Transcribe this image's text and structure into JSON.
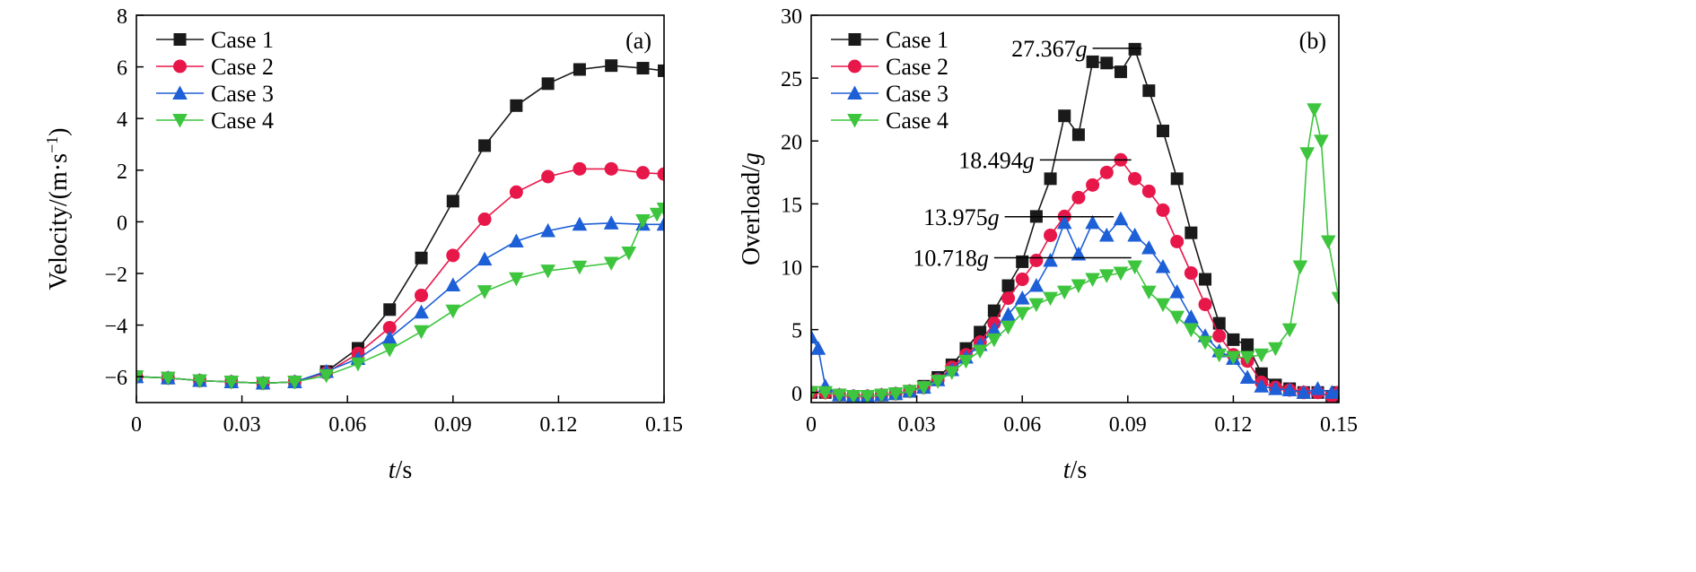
{
  "colors": {
    "case1": "#1a1a1a",
    "case2": "#e8174a",
    "case3": "#1d5fd6",
    "case4": "#3ec53e"
  },
  "chart_data": [
    {
      "type": "line",
      "panel_label": "(a)",
      "xlabel_var": "t",
      "xlabel_unit": "/s",
      "ylabel": "Velocity/(m·s",
      "ylabel_sup": "−1",
      "ylabel_close": ")",
      "xlim": [
        0,
        0.15
      ],
      "ylim": [
        -7,
        8
      ],
      "xticks": [
        0,
        0.03,
        0.06,
        0.09,
        0.12,
        0.15
      ],
      "xtick_labels": [
        "0",
        "0.03",
        "0.06",
        "0.09",
        "0.12",
        "0.15"
      ],
      "yticks": [
        -6,
        -4,
        -2,
        0,
        2,
        4,
        6,
        8
      ],
      "ytick_labels": [
        "−6",
        "−4",
        "−2",
        "0",
        "2",
        "4",
        "6",
        "8"
      ],
      "legend_position": "top-left",
      "series": [
        {
          "name": "Case 1",
          "marker": "square",
          "color_key": "case1",
          "x": [
            0,
            0.009,
            0.018,
            0.027,
            0.036,
            0.045,
            0.054,
            0.063,
            0.072,
            0.081,
            0.09,
            0.099,
            0.108,
            0.117,
            0.126,
            0.135,
            0.144,
            0.15
          ],
          "y": [
            -6.0,
            -6.05,
            -6.15,
            -6.2,
            -6.25,
            -6.2,
            -5.8,
            -4.9,
            -3.4,
            -1.4,
            0.8,
            2.95,
            4.5,
            5.35,
            5.9,
            6.05,
            5.95,
            5.85
          ]
        },
        {
          "name": "Case 2",
          "marker": "circle",
          "color_key": "case2",
          "x": [
            0,
            0.009,
            0.018,
            0.027,
            0.036,
            0.045,
            0.054,
            0.063,
            0.072,
            0.081,
            0.09,
            0.099,
            0.108,
            0.117,
            0.126,
            0.135,
            0.144,
            0.15
          ],
          "y": [
            -6.0,
            -6.05,
            -6.15,
            -6.2,
            -6.25,
            -6.2,
            -5.85,
            -5.1,
            -4.1,
            -2.85,
            -1.3,
            0.1,
            1.15,
            1.75,
            2.05,
            2.05,
            1.9,
            1.85
          ]
        },
        {
          "name": "Case 3",
          "marker": "triangle-up",
          "color_key": "case3",
          "x": [
            0,
            0.009,
            0.018,
            0.027,
            0.036,
            0.045,
            0.054,
            0.063,
            0.072,
            0.081,
            0.09,
            0.099,
            0.108,
            0.117,
            0.126,
            0.135,
            0.144,
            0.15
          ],
          "y": [
            -6.0,
            -6.05,
            -6.15,
            -6.2,
            -6.25,
            -6.2,
            -5.8,
            -5.3,
            -4.5,
            -3.5,
            -2.45,
            -1.45,
            -0.75,
            -0.35,
            -0.1,
            -0.05,
            -0.1,
            -0.1
          ]
        },
        {
          "name": "Case 4",
          "marker": "triangle-down",
          "color_key": "case4",
          "x": [
            0,
            0.009,
            0.018,
            0.027,
            0.036,
            0.045,
            0.054,
            0.063,
            0.072,
            0.081,
            0.09,
            0.099,
            0.108,
            0.117,
            0.126,
            0.135,
            0.14,
            0.144,
            0.148,
            0.15
          ],
          "y": [
            -6.0,
            -6.05,
            -6.15,
            -6.2,
            -6.25,
            -6.2,
            -5.95,
            -5.5,
            -4.95,
            -4.25,
            -3.45,
            -2.7,
            -2.2,
            -1.9,
            -1.75,
            -1.6,
            -1.2,
            0.05,
            0.3,
            0.5
          ]
        }
      ]
    },
    {
      "type": "line",
      "panel_label": "(b)",
      "xlabel_var": "t",
      "xlabel_unit": "/s",
      "ylabel": "Overload/",
      "ylabel_var": "g",
      "xlim": [
        0,
        0.15
      ],
      "ylim": [
        -0.8,
        30
      ],
      "xticks": [
        0,
        0.03,
        0.06,
        0.09,
        0.12,
        0.15
      ],
      "xtick_labels": [
        "0",
        "0.03",
        "0.06",
        "0.09",
        "0.12",
        "0.15"
      ],
      "yticks": [
        0,
        5,
        10,
        15,
        20,
        25,
        30
      ],
      "ytick_labels": [
        "0",
        "5",
        "10",
        "15",
        "20",
        "25",
        "30"
      ],
      "legend_position": "top-left",
      "annotations": [
        {
          "value": "27.367",
          "unit": "g",
          "y": 27.367,
          "x_from": 0.08,
          "x_to": 0.094
        },
        {
          "value": "18.494",
          "unit": "g",
          "y": 18.494,
          "x_from": 0.065,
          "x_to": 0.091
        },
        {
          "value": "13.975",
          "unit": "g",
          "y": 13.975,
          "x_from": 0.055,
          "x_to": 0.086
        },
        {
          "value": "10.718",
          "unit": "g",
          "y": 10.718,
          "x_from": 0.052,
          "x_to": 0.091
        }
      ],
      "series": [
        {
          "name": "Case 1",
          "marker": "square",
          "color_key": "case1",
          "x": [
            0,
            0.004,
            0.008,
            0.012,
            0.016,
            0.02,
            0.024,
            0.028,
            0.032,
            0.036,
            0.04,
            0.044,
            0.048,
            0.052,
            0.056,
            0.06,
            0.064,
            0.068,
            0.072,
            0.076,
            0.08,
            0.084,
            0.088,
            0.092,
            0.096,
            0.1,
            0.104,
            0.108,
            0.112,
            0.116,
            0.12,
            0.124,
            0.128,
            0.132,
            0.136,
            0.14,
            0.144,
            0.148,
            0.15
          ],
          "y": [
            0,
            0,
            -0.2,
            -0.3,
            -0.3,
            -0.2,
            -0.1,
            0.1,
            0.5,
            1.2,
            2.2,
            3.5,
            4.8,
            6.5,
            8.5,
            10.4,
            14.0,
            17.0,
            22.0,
            20.5,
            26.3,
            26.2,
            25.5,
            27.3,
            24.0,
            20.8,
            17.0,
            12.7,
            9.0,
            5.5,
            4.2,
            3.8,
            1.5,
            0.6,
            0.3,
            0.0,
            0.0,
            -0.3,
            0.0
          ]
        },
        {
          "name": "Case 2",
          "marker": "circle",
          "color_key": "case2",
          "x": [
            0,
            0.004,
            0.008,
            0.012,
            0.016,
            0.02,
            0.024,
            0.028,
            0.032,
            0.036,
            0.04,
            0.044,
            0.048,
            0.052,
            0.056,
            0.06,
            0.064,
            0.068,
            0.072,
            0.076,
            0.08,
            0.084,
            0.088,
            0.092,
            0.096,
            0.1,
            0.104,
            0.108,
            0.112,
            0.116,
            0.12,
            0.124,
            0.128,
            0.132,
            0.136,
            0.14,
            0.144,
            0.148,
            0.15
          ],
          "y": [
            0,
            0,
            -0.2,
            -0.3,
            -0.3,
            -0.2,
            -0.1,
            0.1,
            0.4,
            1.0,
            2.0,
            3.0,
            4.0,
            5.5,
            7.5,
            9.0,
            10.5,
            12.5,
            14.0,
            15.5,
            16.5,
            17.5,
            18.5,
            17.0,
            16.0,
            14.5,
            12.0,
            9.5,
            7.0,
            4.5,
            3.0,
            2.5,
            0.8,
            0.4,
            0.2,
            0.0,
            0.0,
            -0.3,
            0.0
          ]
        },
        {
          "name": "Case 3",
          "marker": "triangle-up",
          "color_key": "case3",
          "x": [
            0,
            0.002,
            0.004,
            0.008,
            0.012,
            0.016,
            0.02,
            0.024,
            0.028,
            0.032,
            0.036,
            0.04,
            0.044,
            0.048,
            0.052,
            0.056,
            0.06,
            0.064,
            0.068,
            0.072,
            0.076,
            0.08,
            0.084,
            0.088,
            0.092,
            0.096,
            0.1,
            0.104,
            0.108,
            0.112,
            0.116,
            0.12,
            0.124,
            0.128,
            0.132,
            0.136,
            0.14,
            0.144,
            0.148,
            0.15
          ],
          "y": [
            4.4,
            3.5,
            0.5,
            -0.2,
            -0.3,
            -0.3,
            -0.2,
            -0.1,
            0.1,
            0.4,
            1.0,
            1.8,
            2.8,
            3.8,
            5.0,
            6.2,
            7.5,
            8.5,
            10.5,
            13.5,
            11.0,
            13.5,
            12.5,
            13.8,
            12.5,
            11.5,
            10.0,
            8.0,
            6.0,
            4.5,
            3.3,
            2.7,
            1.2,
            0.5,
            0.3,
            0.2,
            0.0,
            0.3,
            0.0,
            0.0
          ]
        },
        {
          "name": "Case 4",
          "marker": "triangle-down",
          "color_key": "case4",
          "x": [
            0,
            0.004,
            0.008,
            0.012,
            0.016,
            0.02,
            0.024,
            0.028,
            0.032,
            0.036,
            0.04,
            0.044,
            0.048,
            0.052,
            0.056,
            0.06,
            0.064,
            0.068,
            0.072,
            0.076,
            0.08,
            0.084,
            0.088,
            0.092,
            0.096,
            0.1,
            0.104,
            0.108,
            0.112,
            0.116,
            0.12,
            0.124,
            0.128,
            0.132,
            0.136,
            0.139,
            0.141,
            0.143,
            0.145,
            0.147,
            0.15
          ],
          "y": [
            0,
            0,
            -0.2,
            -0.3,
            -0.3,
            -0.2,
            -0.1,
            0.1,
            0.4,
            0.9,
            1.6,
            2.5,
            3.3,
            4.2,
            5.2,
            6.3,
            7.0,
            7.5,
            8.0,
            8.5,
            9.0,
            9.3,
            9.5,
            10.0,
            8.0,
            7.0,
            6.0,
            5.0,
            4.0,
            3.0,
            2.8,
            2.8,
            3.0,
            3.5,
            5.0,
            10.0,
            19.0,
            22.5,
            20.0,
            12.0,
            7.5
          ]
        }
      ]
    }
  ]
}
